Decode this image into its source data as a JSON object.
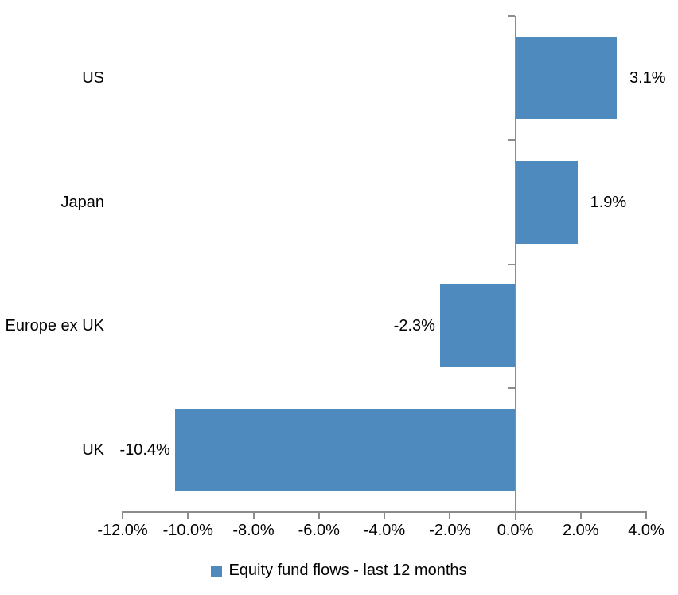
{
  "colors": {
    "bar": "#4E8ABD",
    "axis": "#8C8C8C",
    "text": "#000000"
  },
  "chart_data": {
    "type": "bar",
    "orientation": "horizontal",
    "categories": [
      "US",
      "Japan",
      "Europe ex UK",
      "UK"
    ],
    "values": [
      3.1,
      1.9,
      -2.3,
      -10.4
    ],
    "value_labels": [
      "3.1%",
      "1.9%",
      "-2.3%",
      "-10.4%"
    ],
    "series_name": "Equity fund flows - last 12 months",
    "xlim": [
      -12,
      4
    ],
    "x_tick_step": 2,
    "x_tick_labels": [
      "-12.0%",
      "-10.0%",
      "-8.0%",
      "-6.0%",
      "-4.0%",
      "-2.0%",
      "0.0%",
      "2.0%",
      "4.0%"
    ],
    "grid": false,
    "legend_position": "bottom"
  }
}
